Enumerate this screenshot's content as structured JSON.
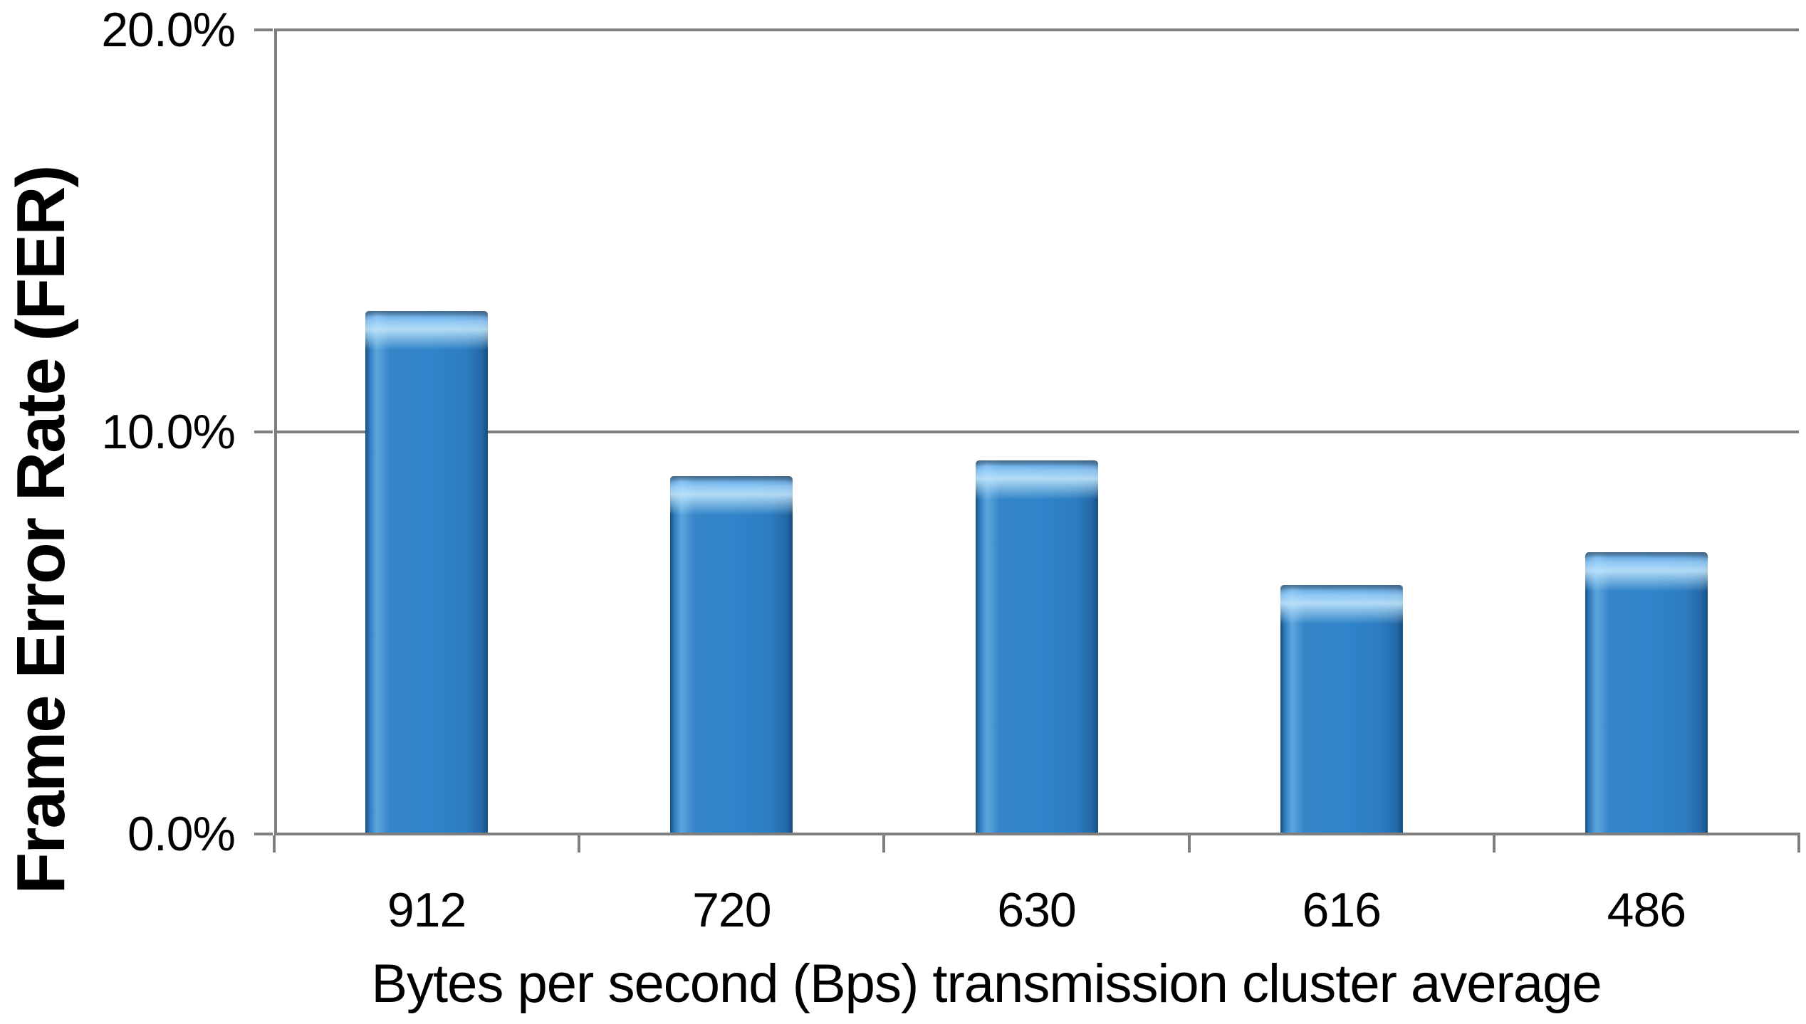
{
  "chart_data": {
    "type": "bar",
    "title": "",
    "categories": [
      "912",
      "720",
      "630",
      "616",
      "486"
    ],
    "values": [
      13.0,
      8.9,
      9.3,
      6.2,
      7.0
    ],
    "series_name": "Frame Error Rate",
    "xlabel": "Bytes per second (Bps) transmission cluster average",
    "ylabel": "Frame Error Rate (FER)",
    "ylim": [
      0,
      20
    ],
    "ytick_values": [
      0,
      10,
      20
    ],
    "ytick_labels": [
      "0.0%",
      "10.0%",
      "20.0%"
    ],
    "grid": "horizontal",
    "legend_position": "none",
    "colors": {
      "bar_fill": "#3084C9",
      "bar_edge_dark": "#174E7E",
      "bar_highlight": "#A5D7FF",
      "axis": "#7F7F7F",
      "text": "#000000",
      "background": "#FFFFFF"
    }
  }
}
